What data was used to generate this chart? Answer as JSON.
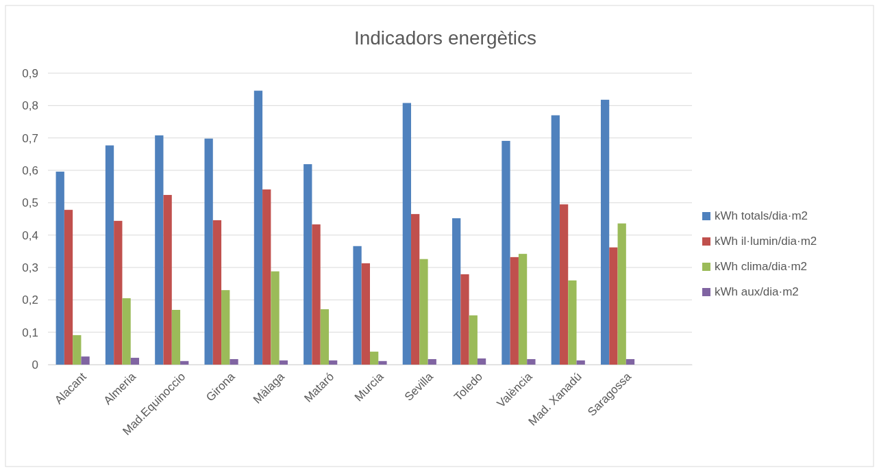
{
  "chart_data": {
    "type": "bar",
    "title": "Indicadors energètics",
    "categories": [
      "Alacant",
      "Almeria",
      "Mad.Equinoccio",
      "Girona",
      "Màlaga",
      "Mataró",
      "Murcia",
      "Sevilla",
      "Toledo",
      "València",
      "Mad. Xanadú",
      "Saragossa",
      null
    ],
    "series": [
      {
        "name": "kWh totals/dia·m2",
        "color": "#4f81bd",
        "values": [
          0.596,
          0.677,
          0.708,
          0.698,
          0.846,
          0.619,
          0.366,
          0.808,
          0.452,
          0.691,
          0.77,
          0.818,
          null
        ]
      },
      {
        "name": "kWh il·lumin/dia·m2",
        "color": "#c0504d",
        "values": [
          0.478,
          0.444,
          0.524,
          0.446,
          0.541,
          0.433,
          0.313,
          0.465,
          0.279,
          0.332,
          0.495,
          0.362,
          null
        ]
      },
      {
        "name": "kWh clima/dia·m2",
        "color": "#9bbb59",
        "values": [
          0.091,
          0.205,
          0.169,
          0.23,
          0.288,
          0.171,
          0.04,
          0.326,
          0.152,
          0.342,
          0.26,
          0.436,
          null
        ]
      },
      {
        "name": "kWh aux/dia·m2",
        "color": "#8064a2",
        "values": [
          0.025,
          0.021,
          0.011,
          0.017,
          0.013,
          0.013,
          0.011,
          0.017,
          0.019,
          0.017,
          0.013,
          0.017,
          null
        ]
      }
    ],
    "ylim": [
      0,
      0.9
    ],
    "yticks": [
      {
        "value": 0,
        "label": "0"
      },
      {
        "value": 0.1,
        "label": "0,1"
      },
      {
        "value": 0.2,
        "label": "0,2"
      },
      {
        "value": 0.3,
        "label": "0,3"
      },
      {
        "value": 0.4,
        "label": "0,4"
      },
      {
        "value": 0.5,
        "label": "0,5"
      },
      {
        "value": 0.6,
        "label": "0,6"
      },
      {
        "value": 0.7,
        "label": "0,7"
      },
      {
        "value": 0.8,
        "label": "0,8"
      },
      {
        "value": 0.9,
        "label": "0,9"
      }
    ],
    "grid": "y",
    "legend": "right"
  }
}
